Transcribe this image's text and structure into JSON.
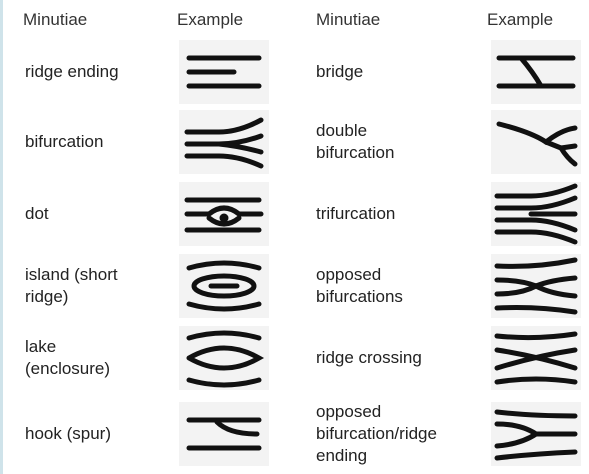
{
  "table": {
    "header": [
      "Minutiae",
      "Example",
      "Minutiae",
      "Example"
    ],
    "rows": [
      [
        "ridge ending",
        "bridge"
      ],
      [
        "bifurcation",
        "double\nbifurcation"
      ],
      [
        "dot",
        "trifurcation"
      ],
      [
        "island (short\nridge)",
        "opposed\nbifurcations"
      ],
      [
        "lake\n(enclosure)",
        "ridge crossing"
      ],
      [
        "hook (spur)",
        "opposed\nbifurcation/ridge\nending"
      ]
    ]
  }
}
